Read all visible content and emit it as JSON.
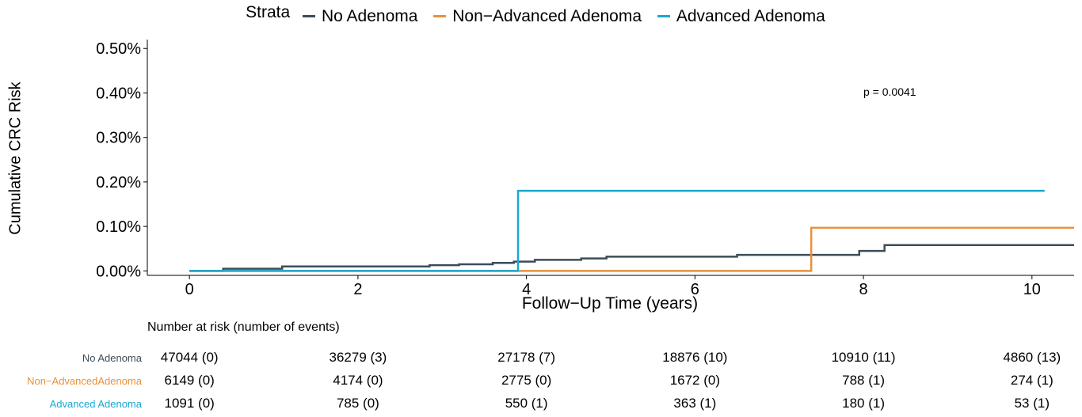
{
  "legend": {
    "title": "Strata",
    "items": [
      {
        "label": "No Adenoma",
        "color": "#3b4d57"
      },
      {
        "label": "Non−Advanced Adenoma",
        "color": "#e8913a"
      },
      {
        "label": "Advanced Adenoma",
        "color": "#1aa7d1"
      }
    ]
  },
  "p_value": "p = 0.0041",
  "chart_data": {
    "type": "line",
    "step": true,
    "xlabel": "Follow−Up Time (years)",
    "ylabel": "Cumulative CRC Risk",
    "xlim": [
      -0.5,
      10.5
    ],
    "ylim": [
      -0.0001,
      0.0052
    ],
    "x_ticks": [
      0,
      2,
      4,
      6,
      8,
      10
    ],
    "y_ticks": [
      0.0,
      0.001,
      0.002,
      0.003,
      0.004,
      0.005
    ],
    "y_tick_labels": [
      "0.00%",
      "0.10%",
      "0.20%",
      "0.30%",
      "0.40%",
      "0.50%"
    ],
    "grid": false,
    "legend_position": "top",
    "series": [
      {
        "name": "No Adenoma",
        "color": "#3b4d57",
        "points": [
          [
            0,
            0.0
          ],
          [
            0.4,
            5e-05
          ],
          [
            1.1,
            0.0001
          ],
          [
            2.85,
            0.00013
          ],
          [
            3.2,
            0.00015
          ],
          [
            3.6,
            0.00018
          ],
          [
            3.85,
            0.00021
          ],
          [
            4.1,
            0.00025
          ],
          [
            4.65,
            0.00028
          ],
          [
            4.95,
            0.00032
          ],
          [
            6.5,
            0.00036
          ],
          [
            7.95,
            0.00045
          ],
          [
            8.25,
            0.00058
          ],
          [
            10.5,
            0.00058
          ]
        ]
      },
      {
        "name": "Non−Advanced Adenoma",
        "color": "#e8913a",
        "points": [
          [
            0,
            0.0
          ],
          [
            7.38,
            0.0
          ],
          [
            7.38,
            0.00097
          ],
          [
            10.5,
            0.00097
          ]
        ]
      },
      {
        "name": "Advanced Adenoma",
        "color": "#1aa7d1",
        "points": [
          [
            0,
            0.0
          ],
          [
            3.9,
            0.0
          ],
          [
            3.9,
            0.0018
          ],
          [
            10.15,
            0.0018
          ]
        ]
      }
    ]
  },
  "risk_table": {
    "title": "Number at risk (number of events)",
    "times": [
      0,
      2,
      4,
      6,
      8,
      10
    ],
    "rows": [
      {
        "label": "No Adenoma",
        "color": "#3b4d57",
        "values": [
          "47044 (0)",
          "36279 (3)",
          "27178 (7)",
          "18876 (10)",
          "10910 (11)",
          "4860 (13)"
        ]
      },
      {
        "label": "Non−AdvancedAdenoma",
        "color": "#e8913a",
        "values": [
          "6149 (0)",
          "4174 (0)",
          "2775 (0)",
          "1672 (0)",
          "788 (1)",
          "274 (1)"
        ]
      },
      {
        "label": "Advanced Adenoma",
        "color": "#1aa7d1",
        "values": [
          "1091 (0)",
          "785 (0)",
          "550 (1)",
          "363 (1)",
          "180 (1)",
          "53 (1)"
        ]
      }
    ]
  }
}
